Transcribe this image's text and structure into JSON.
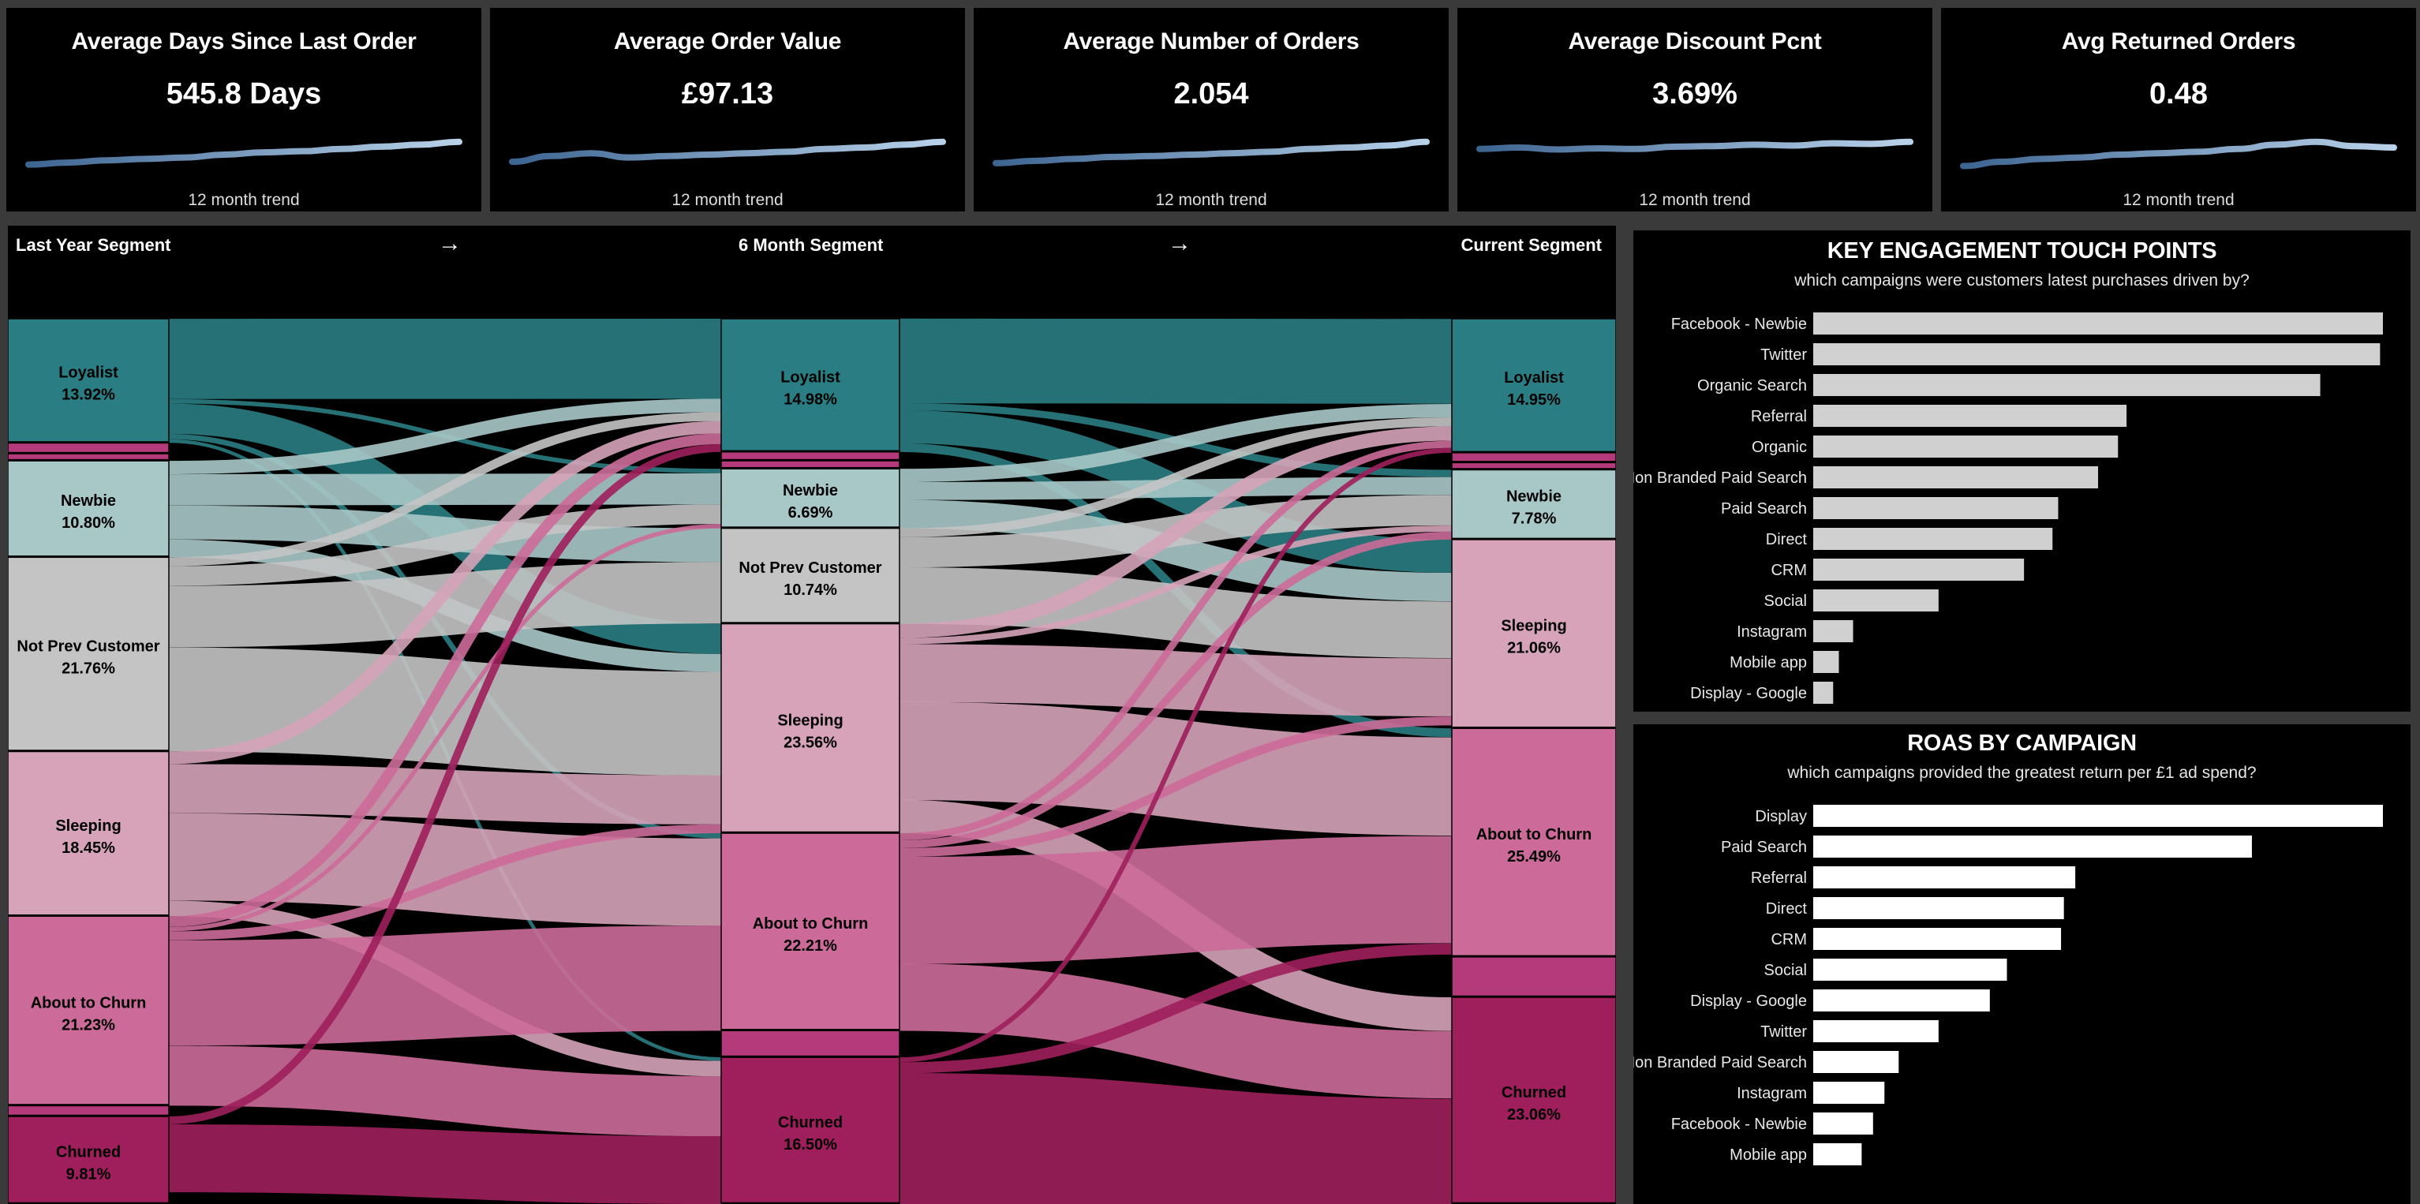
{
  "kpis": [
    {
      "title": "Average Days Since Last Order",
      "value": "545.8 Days",
      "footnote": "12 month trend",
      "trend": [
        0.15,
        0.22,
        0.3,
        0.35,
        0.4,
        0.5,
        0.58,
        0.62,
        0.7,
        0.78,
        0.85,
        0.95
      ]
    },
    {
      "title": "Average Order Value",
      "value": "£97.13",
      "footnote": "12 month trend",
      "trend": [
        0.25,
        0.45,
        0.55,
        0.4,
        0.45,
        0.5,
        0.55,
        0.6,
        0.7,
        0.75,
        0.85,
        0.95
      ]
    },
    {
      "title": "Average Number of Orders",
      "value": "2.054",
      "footnote": "12 month trend",
      "trend": [
        0.2,
        0.28,
        0.35,
        0.42,
        0.45,
        0.5,
        0.55,
        0.6,
        0.7,
        0.75,
        0.82,
        0.95
      ]
    },
    {
      "title": "Average Discount Pcnt",
      "value": "3.69%",
      "footnote": "12 month trend",
      "trend": [
        0.7,
        0.75,
        0.68,
        0.72,
        0.7,
        0.78,
        0.8,
        0.85,
        0.82,
        0.9,
        0.88,
        0.95
      ]
    },
    {
      "title": "Avg Returned Orders",
      "value": "0.48",
      "footnote": "12 month trend",
      "trend": [
        0.1,
        0.25,
        0.35,
        0.4,
        0.5,
        0.55,
        0.6,
        0.7,
        0.85,
        0.95,
        0.8,
        0.75
      ]
    }
  ],
  "sankey": {
    "headers": {
      "left": "Last Year Segment",
      "mid": "6 Month Segment",
      "right": "Current Segment",
      "arrow": "→"
    },
    "colors": {
      "Loyalist": "#2a7d82",
      "Newbie": "#a8c8c8",
      "Not Prev Customer": "#c4c4c4",
      "Sleeping": "#d6a3b8",
      "About to Churn": "#cc6b99",
      "Other": "#b53a7c",
      "Churned": "#9e1f5c"
    },
    "columns": [
      {
        "name": "Last Year Segment",
        "nodes": [
          {
            "name": "Loyalist",
            "pct": "13.92%",
            "value": 13.92
          },
          {
            "name": "Other",
            "pct": "",
            "value": 1.2
          },
          {
            "name": "Other",
            "pct": "",
            "value": 0.8
          },
          {
            "name": "Newbie",
            "pct": "10.80%",
            "value": 10.8
          },
          {
            "name": "Not Prev Customer",
            "pct": "21.76%",
            "value": 21.76
          },
          {
            "name": "Sleeping",
            "pct": "18.45%",
            "value": 18.45
          },
          {
            "name": "About to Churn",
            "pct": "21.23%",
            "value": 21.23
          },
          {
            "name": "Other",
            "pct": "",
            "value": 1.2
          },
          {
            "name": "Churned",
            "pct": "9.81%",
            "value": 9.81
          }
        ]
      },
      {
        "name": "6 Month Segment",
        "nodes": [
          {
            "name": "Loyalist",
            "pct": "14.98%",
            "value": 14.98
          },
          {
            "name": "Other",
            "pct": "",
            "value": 1.0
          },
          {
            "name": "Other",
            "pct": "",
            "value": 0.9
          },
          {
            "name": "Newbie",
            "pct": "6.69%",
            "value": 6.69
          },
          {
            "name": "Not Prev Customer",
            "pct": "10.74%",
            "value": 10.74
          },
          {
            "name": "Sleeping",
            "pct": "23.56%",
            "value": 23.56
          },
          {
            "name": "About to Churn",
            "pct": "22.21%",
            "value": 22.21
          },
          {
            "name": "Other",
            "pct": "",
            "value": 3.0
          },
          {
            "name": "Churned",
            "pct": "16.50%",
            "value": 16.5
          }
        ]
      },
      {
        "name": "Current Segment",
        "nodes": [
          {
            "name": "Loyalist",
            "pct": "14.95%",
            "value": 14.95
          },
          {
            "name": "Other",
            "pct": "",
            "value": 1.1
          },
          {
            "name": "Other",
            "pct": "",
            "value": 0.8
          },
          {
            "name": "Newbie",
            "pct": "7.78%",
            "value": 7.78
          },
          {
            "name": "Sleeping",
            "pct": "21.06%",
            "value": 21.06
          },
          {
            "name": "About to Churn",
            "pct": "25.49%",
            "value": 25.49
          },
          {
            "name": "Other",
            "pct": "",
            "value": 4.5
          },
          {
            "name": "Churned",
            "pct": "23.06%",
            "value": 23.06
          }
        ]
      }
    ],
    "links": [
      {
        "stage": 0,
        "from": "Loyalist",
        "to": "Loyalist",
        "value": 9.0
      },
      {
        "stage": 0,
        "from": "Loyalist",
        "to": "Newbie",
        "value": 0.5
      },
      {
        "stage": 0,
        "from": "Loyalist",
        "to": "Sleeping",
        "value": 3.4
      },
      {
        "stage": 0,
        "from": "Loyalist",
        "to": "About to Churn",
        "value": 0.6
      },
      {
        "stage": 0,
        "from": "Loyalist",
        "to": "Churned",
        "value": 0.4
      },
      {
        "stage": 0,
        "from": "Newbie",
        "to": "Loyalist",
        "value": 1.5
      },
      {
        "stage": 0,
        "from": "Newbie",
        "to": "Newbie",
        "value": 3.5
      },
      {
        "stage": 0,
        "from": "Newbie",
        "to": "Not Prev Customer",
        "value": 3.8
      },
      {
        "stage": 0,
        "from": "Newbie",
        "to": "Sleeping",
        "value": 2.0
      },
      {
        "stage": 0,
        "from": "Not Prev Customer",
        "to": "Loyalist",
        "value": 1.0
      },
      {
        "stage": 0,
        "from": "Not Prev Customer",
        "to": "Newbie",
        "value": 2.2
      },
      {
        "stage": 0,
        "from": "Not Prev Customer",
        "to": "Not Prev Customer",
        "value": 6.9
      },
      {
        "stage": 0,
        "from": "Not Prev Customer",
        "to": "Sleeping",
        "value": 11.66
      },
      {
        "stage": 0,
        "from": "Sleeping",
        "to": "Loyalist",
        "value": 1.4
      },
      {
        "stage": 0,
        "from": "Sleeping",
        "to": "Sleeping",
        "value": 5.5
      },
      {
        "stage": 0,
        "from": "Sleeping",
        "to": "About to Churn",
        "value": 9.8
      },
      {
        "stage": 0,
        "from": "Sleeping",
        "to": "Churned",
        "value": 1.75
      },
      {
        "stage": 0,
        "from": "About to Churn",
        "to": "Loyalist",
        "value": 1.2
      },
      {
        "stage": 0,
        "from": "About to Churn",
        "to": "Newbie",
        "value": 0.49
      },
      {
        "stage": 0,
        "from": "About to Churn",
        "to": "Sleeping",
        "value": 1.0
      },
      {
        "stage": 0,
        "from": "About to Churn",
        "to": "About to Churn",
        "value": 11.81
      },
      {
        "stage": 0,
        "from": "About to Churn",
        "to": "Churned",
        "value": 6.73
      },
      {
        "stage": 0,
        "from": "Churned",
        "to": "Loyalist",
        "value": 0.88
      },
      {
        "stage": 0,
        "from": "Churned",
        "to": "Churned",
        "value": 7.62
      },
      {
        "stage": 1,
        "from": "Loyalist",
        "to": "Loyalist",
        "value": 9.5
      },
      {
        "stage": 1,
        "from": "Loyalist",
        "to": "Newbie",
        "value": 0.8
      },
      {
        "stage": 1,
        "from": "Loyalist",
        "to": "Sleeping",
        "value": 3.7
      },
      {
        "stage": 1,
        "from": "Loyalist",
        "to": "About to Churn",
        "value": 0.98
      },
      {
        "stage": 1,
        "from": "Newbie",
        "to": "Loyalist",
        "value": 1.5
      },
      {
        "stage": 1,
        "from": "Newbie",
        "to": "Newbie",
        "value": 2.0
      },
      {
        "stage": 1,
        "from": "Newbie",
        "to": "Sleeping",
        "value": 3.19
      },
      {
        "stage": 1,
        "from": "Not Prev Customer",
        "to": "Loyalist",
        "value": 1.0
      },
      {
        "stage": 1,
        "from": "Not Prev Customer",
        "to": "Newbie",
        "value": 3.4
      },
      {
        "stage": 1,
        "from": "Not Prev Customer",
        "to": "Sleeping",
        "value": 6.34
      },
      {
        "stage": 1,
        "from": "Sleeping",
        "to": "Loyalist",
        "value": 1.6
      },
      {
        "stage": 1,
        "from": "Sleeping",
        "to": "Newbie",
        "value": 0.7
      },
      {
        "stage": 1,
        "from": "Sleeping",
        "to": "Sleeping",
        "value": 6.5
      },
      {
        "stage": 1,
        "from": "Sleeping",
        "to": "About to Churn",
        "value": 11.0
      },
      {
        "stage": 1,
        "from": "Sleeping",
        "to": "Churned",
        "value": 3.76
      },
      {
        "stage": 1,
        "from": "About to Churn",
        "to": "Loyalist",
        "value": 0.8
      },
      {
        "stage": 1,
        "from": "About to Churn",
        "to": "Newbie",
        "value": 0.88
      },
      {
        "stage": 1,
        "from": "About to Churn",
        "to": "Sleeping",
        "value": 1.0
      },
      {
        "stage": 1,
        "from": "About to Churn",
        "to": "About to Churn",
        "value": 12.0
      },
      {
        "stage": 1,
        "from": "About to Churn",
        "to": "Churned",
        "value": 7.53
      },
      {
        "stage": 1,
        "from": "Churned",
        "to": "Loyalist",
        "value": 0.55
      },
      {
        "stage": 1,
        "from": "Churned",
        "to": "About to Churn",
        "value": 1.25
      },
      {
        "stage": 1,
        "from": "Churned",
        "to": "Churned",
        "value": 14.7
      }
    ]
  },
  "chart_data": [
    {
      "type": "bar",
      "title": "KEY ENGAGEMENT TOUCH POINTS",
      "subtitle": "which campaigns were customers latest purchases driven by?",
      "orientation": "horizontal",
      "bar_color": "#d0d0d0",
      "categories": [
        "Facebook - Newbie",
        "Twitter",
        "Organic Search",
        "Referral",
        "Organic",
        "Non Branded Paid Search",
        "Paid Search",
        "Direct",
        "CRM",
        "Social",
        "Instagram",
        "Mobile app",
        "Display - Google"
      ],
      "values": [
        100,
        99.5,
        89,
        55,
        53.5,
        50,
        43,
        42,
        37,
        22,
        7,
        4.5,
        3.5
      ]
    },
    {
      "type": "bar",
      "title": "ROAS BY CAMPAIGN",
      "subtitle": "which campaigns provided the greatest return per £1 ad spend?",
      "orientation": "horizontal",
      "bar_color": "#ffffff",
      "categories": [
        "Display",
        "Paid Search",
        "Referral",
        "Direct",
        "CRM",
        "Social",
        "Display - Google",
        "Twitter",
        "Non Branded Paid Search",
        "Instagram",
        "Facebook - Newbie",
        "Mobile app"
      ],
      "values": [
        100,
        77,
        46,
        44,
        43.5,
        34,
        31,
        22,
        15,
        12.5,
        10.5,
        8.5
      ]
    }
  ]
}
